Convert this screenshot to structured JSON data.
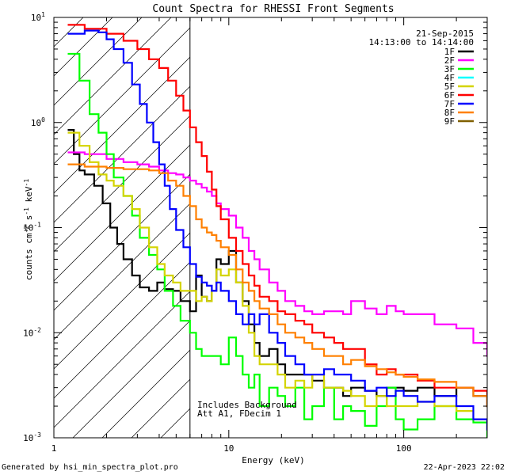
{
  "chart_data": {
    "type": "line",
    "title": "Count Spectra for RHESSI Front Segments",
    "xlabel": "Energy (keV)",
    "ylabel": "counts cm-2 s-1 keV-1",
    "ylabel_parts": {
      "base": "counts cm",
      "exp1": "-2",
      "mid": " s",
      "exp2": "-1",
      "mid2": " keV",
      "exp3": "-1"
    },
    "x_scale": "log",
    "y_scale": "log",
    "xlim": [
      1,
      300
    ],
    "ylim": [
      0.001,
      10
    ],
    "x_ticks": [
      {
        "value": 1,
        "label": "1"
      },
      {
        "value": 10,
        "label": "10"
      },
      {
        "value": 100,
        "label": "100"
      }
    ],
    "y_ticks": [
      {
        "value": 0.001,
        "base": "10",
        "exp": "-3"
      },
      {
        "value": 0.01,
        "base": "10",
        "exp": "-2"
      },
      {
        "value": 0.1,
        "base": "10",
        "exp": "-1"
      },
      {
        "value": 1,
        "base": "10",
        "exp": "0"
      },
      {
        "value": 10,
        "base": "10",
        "exp": "1"
      }
    ],
    "date": "21-Sep-2015",
    "time_range": "14:13:00 to 14:14:00",
    "annotations": [
      "Includes Background",
      "Att A1, FDecim 1"
    ],
    "hatched_region_xmax": 6,
    "series": [
      {
        "name": "1F",
        "color": "#000000",
        "x": [
          1.2,
          1.3,
          1.4,
          1.5,
          1.7,
          1.9,
          2.1,
          2.3,
          2.5,
          2.8,
          3.1,
          3.5,
          3.9,
          4.3,
          4.8,
          5.3,
          6,
          6.5,
          7,
          7.5,
          8,
          8.5,
          9,
          10,
          11,
          12,
          13,
          14,
          15,
          17,
          19,
          21,
          24,
          27,
          30,
          35,
          40,
          45,
          50,
          60,
          70,
          80,
          90,
          100,
          120,
          150,
          200,
          250,
          300
        ],
        "y": [
          0.85,
          0.5,
          0.35,
          0.32,
          0.25,
          0.17,
          0.1,
          0.07,
          0.05,
          0.035,
          0.027,
          0.025,
          0.03,
          0.026,
          0.025,
          0.02,
          0.016,
          0.035,
          0.022,
          0.02,
          0.025,
          0.05,
          0.045,
          0.06,
          0.03,
          0.02,
          0.012,
          0.008,
          0.006,
          0.007,
          0.005,
          0.004,
          0.004,
          0.004,
          0.0035,
          0.003,
          0.003,
          0.0025,
          0.003,
          0.0028,
          0.0025,
          0.003,
          0.003,
          0.0028,
          0.003,
          0.0025,
          0.003,
          0.0025,
          0.002
        ]
      },
      {
        "name": "2F",
        "color": "#ff00ff",
        "x": [
          1.2,
          1.5,
          2,
          2.5,
          3,
          3.5,
          4,
          4.5,
          5,
          5.5,
          6,
          6.5,
          7,
          7.5,
          8,
          8.5,
          9,
          10,
          11,
          12,
          13,
          14,
          15,
          17,
          19,
          21,
          24,
          27,
          30,
          35,
          40,
          45,
          50,
          60,
          70,
          80,
          90,
          100,
          120,
          150,
          200,
          250,
          300
        ],
        "y": [
          0.52,
          0.5,
          0.45,
          0.42,
          0.4,
          0.38,
          0.35,
          0.33,
          0.32,
          0.3,
          0.28,
          0.26,
          0.24,
          0.22,
          0.2,
          0.17,
          0.15,
          0.13,
          0.1,
          0.08,
          0.06,
          0.05,
          0.04,
          0.03,
          0.025,
          0.02,
          0.018,
          0.016,
          0.015,
          0.016,
          0.016,
          0.015,
          0.02,
          0.017,
          0.015,
          0.018,
          0.016,
          0.015,
          0.015,
          0.012,
          0.011,
          0.008,
          0.006
        ]
      },
      {
        "name": "3F",
        "color": "#00ff00",
        "x": [
          1.2,
          1.4,
          1.6,
          1.8,
          2,
          2.2,
          2.5,
          2.8,
          3.1,
          3.5,
          3.9,
          4.3,
          4.8,
          5.3,
          6,
          6.5,
          7,
          8,
          9,
          10,
          11,
          12,
          13,
          14,
          15,
          17,
          19,
          21,
          24,
          27,
          30,
          35,
          40,
          45,
          50,
          60,
          70,
          80,
          90,
          100,
          120,
          150,
          200,
          250,
          300
        ],
        "y": [
          4.5,
          2.5,
          1.2,
          0.8,
          0.5,
          0.3,
          0.2,
          0.13,
          0.08,
          0.055,
          0.04,
          0.025,
          0.018,
          0.013,
          0.01,
          0.007,
          0.006,
          0.006,
          0.005,
          0.009,
          0.006,
          0.004,
          0.003,
          0.004,
          0.002,
          0.003,
          0.0025,
          0.002,
          0.003,
          0.0015,
          0.002,
          0.003,
          0.0015,
          0.002,
          0.0018,
          0.0013,
          0.002,
          0.003,
          0.0015,
          0.0012,
          0.0015,
          0.002,
          0.0015,
          0.0014,
          0.001
        ]
      },
      {
        "name": "4F",
        "color": "#00ffff",
        "x": [],
        "y": []
      },
      {
        "name": "5F",
        "color": "#d4d400",
        "x": [
          1.2,
          1.4,
          1.6,
          1.8,
          2,
          2.2,
          2.5,
          2.8,
          3.1,
          3.5,
          3.9,
          4.3,
          4.8,
          5.3,
          6,
          6.5,
          7,
          7.5,
          8,
          8.5,
          9,
          10,
          11,
          12,
          13,
          14,
          15,
          17,
          19,
          21,
          24,
          27,
          30,
          35,
          40,
          45,
          50,
          60,
          70,
          80,
          90,
          100,
          120,
          150,
          200,
          250,
          300
        ],
        "y": [
          0.8,
          0.6,
          0.42,
          0.32,
          0.28,
          0.25,
          0.2,
          0.15,
          0.1,
          0.065,
          0.045,
          0.035,
          0.03,
          0.025,
          0.025,
          0.02,
          0.022,
          0.02,
          0.025,
          0.04,
          0.035,
          0.04,
          0.03,
          0.018,
          0.01,
          0.006,
          0.005,
          0.005,
          0.004,
          0.003,
          0.0035,
          0.003,
          0.004,
          0.003,
          0.003,
          0.0028,
          0.0025,
          0.002,
          0.0025,
          0.002,
          0.002,
          0.002,
          0.0022,
          0.002,
          0.0018,
          0.0015,
          0.0012
        ]
      },
      {
        "name": "6F",
        "color": "#ff0000",
        "x": [
          1.2,
          1.5,
          2,
          2.5,
          3,
          3.5,
          4,
          4.5,
          5,
          5.5,
          6,
          6.5,
          7,
          7.5,
          8,
          8.5,
          9,
          10,
          11,
          12,
          13,
          14,
          15,
          17,
          19,
          21,
          24,
          27,
          30,
          35,
          40,
          45,
          50,
          60,
          70,
          80,
          90,
          100,
          120,
          150,
          200,
          250,
          300
        ],
        "y": [
          8.5,
          7.8,
          7,
          6,
          5,
          4,
          3.3,
          2.5,
          1.8,
          1.3,
          0.9,
          0.65,
          0.48,
          0.34,
          0.23,
          0.16,
          0.12,
          0.08,
          0.06,
          0.045,
          0.035,
          0.028,
          0.022,
          0.02,
          0.016,
          0.015,
          0.013,
          0.012,
          0.01,
          0.009,
          0.008,
          0.007,
          0.007,
          0.005,
          0.004,
          0.0045,
          0.004,
          0.004,
          0.0035,
          0.003,
          0.003,
          0.0028,
          0.002
        ]
      },
      {
        "name": "7F",
        "color": "#0000ff",
        "x": [
          1.2,
          1.5,
          1.8,
          2,
          2.2,
          2.5,
          2.8,
          3.1,
          3.4,
          3.7,
          4,
          4.3,
          4.6,
          5,
          5.5,
          6,
          6.5,
          7,
          7.5,
          8,
          8.5,
          9,
          10,
          11,
          12,
          13,
          14,
          15,
          17,
          19,
          21,
          24,
          27,
          30,
          35,
          40,
          45,
          50,
          60,
          70,
          80,
          90,
          100,
          120,
          150,
          200,
          250,
          300
        ],
        "y": [
          7,
          7.5,
          7.2,
          6.2,
          5,
          3.7,
          2.3,
          1.5,
          1,
          0.65,
          0.4,
          0.25,
          0.15,
          0.095,
          0.065,
          0.045,
          0.034,
          0.03,
          0.028,
          0.025,
          0.03,
          0.025,
          0.02,
          0.015,
          0.012,
          0.015,
          0.012,
          0.015,
          0.01,
          0.008,
          0.006,
          0.005,
          0.004,
          0.004,
          0.0045,
          0.004,
          0.004,
          0.0035,
          0.0028,
          0.003,
          0.0025,
          0.0028,
          0.0025,
          0.0022,
          0.0025,
          0.002,
          0.0015,
          0.0012
        ]
      },
      {
        "name": "8F",
        "color": "#ff8000",
        "x": [
          1.2,
          1.5,
          2,
          2.5,
          3,
          3.5,
          4,
          4.5,
          5,
          5.5,
          6,
          6.5,
          7,
          7.5,
          8,
          8.5,
          9,
          10,
          11,
          12,
          13,
          14,
          15,
          17,
          19,
          21,
          24,
          27,
          30,
          35,
          40,
          45,
          50,
          60,
          70,
          80,
          90,
          100,
          120,
          150,
          200,
          250,
          300
        ],
        "y": [
          0.4,
          0.38,
          0.37,
          0.36,
          0.36,
          0.35,
          0.33,
          0.28,
          0.25,
          0.2,
          0.16,
          0.12,
          0.1,
          0.09,
          0.085,
          0.075,
          0.065,
          0.055,
          0.04,
          0.03,
          0.025,
          0.02,
          0.017,
          0.015,
          0.012,
          0.01,
          0.009,
          0.008,
          0.007,
          0.006,
          0.006,
          0.005,
          0.0055,
          0.0048,
          0.0045,
          0.0042,
          0.004,
          0.0038,
          0.0036,
          0.0034,
          0.003,
          0.0025,
          0.002
        ]
      },
      {
        "name": "9F",
        "color": "#806000",
        "x": [],
        "y": []
      }
    ]
  },
  "footer": {
    "generated_by": "Generated by hsi_min_spectra_plot.pro",
    "timestamp": "22-Apr-2023 22:02"
  }
}
